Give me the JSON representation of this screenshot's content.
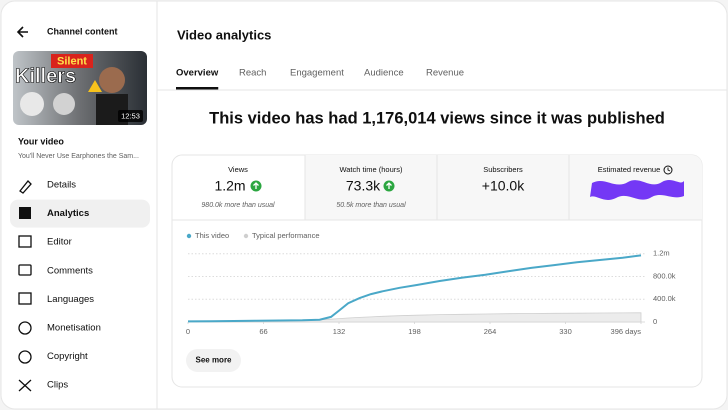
{
  "sidebar": {
    "header": "Channel content",
    "thumbnail": {
      "caption_top": "Silent",
      "caption_main": "Killers",
      "duration": "12:53"
    },
    "video_label": "Your video",
    "video_title": "You'll Never Use Earphones the Sam...",
    "nav": [
      "Details",
      "Analytics",
      "Editor",
      "Comments",
      "Languages",
      "Monetisation",
      "Copyright",
      "Clips"
    ],
    "active_nav": 1
  },
  "header": {
    "title": "Video analytics",
    "tabs": [
      "Overview",
      "Reach",
      "Engagement",
      "Audience",
      "Revenue"
    ],
    "active_tab": 0
  },
  "headline": "This video has had 1,176,014 views since it was published",
  "metrics": [
    {
      "label": "Views",
      "value": "1.2m",
      "note": "980.0k more than usual"
    },
    {
      "label": "Watch time (hours)",
      "value": "73.3k",
      "note": "50.5k more than usual"
    },
    {
      "label": "Subscribers",
      "value": "+10.0k"
    },
    {
      "label": "Estimated revenue"
    }
  ],
  "chart_data": {
    "type": "line",
    "x": [
      0,
      20,
      40,
      60,
      80,
      100,
      115,
      125,
      132,
      140,
      150,
      160,
      170,
      185,
      200,
      220,
      240,
      260,
      280,
      300,
      320,
      340,
      360,
      380,
      396
    ],
    "series": [
      {
        "name": "This video",
        "color": "#4aa8c8",
        "values": [
          10000,
          14000,
          18000,
          22000,
          26000,
          30000,
          40000,
          90000,
          200000,
          330000,
          420000,
          490000,
          540000,
          600000,
          650000,
          720000,
          780000,
          830000,
          890000,
          950000,
          1000000,
          1050000,
          1090000,
          1130000,
          1170000
        ]
      },
      {
        "name": "Typical performance",
        "color": "#cfcfcf",
        "values": [
          0,
          5000,
          10000,
          15000,
          20000,
          30000,
          40000,
          50000,
          60000,
          70000,
          80000,
          90000,
          100000,
          110000,
          120000,
          130000,
          135000,
          140000,
          145000,
          150000,
          152000,
          155000,
          158000,
          160000,
          162000
        ]
      }
    ],
    "xlim": [
      0,
      396
    ],
    "xticks": [
      0,
      66,
      132,
      198,
      264,
      330,
      {
        "value": 396,
        "label": "396 days"
      }
    ],
    "ylim": [
      0,
      1300000
    ],
    "yticks": [
      0,
      {
        "value": 400000,
        "label": "400.0k"
      },
      {
        "value": 800000,
        "label": "800.0k"
      },
      {
        "value": 1200000,
        "label": "1.2m"
      }
    ],
    "grid": true
  },
  "button": "See more"
}
